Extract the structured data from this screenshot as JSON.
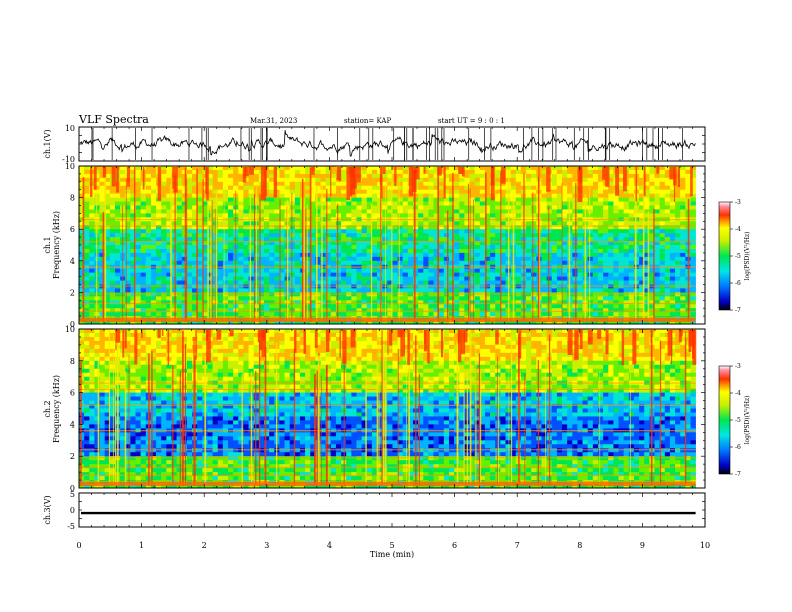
{
  "header": {
    "title": "VLF Spectra",
    "date": "Mar.31, 2023",
    "station": "station= KAP",
    "start": "start  UT =   9 : 0  : 1"
  },
  "chart_data": [
    {
      "type": "line",
      "name": "waveform-ch1",
      "ylabel": "ch.1(V)",
      "ylim": [
        -10,
        10
      ],
      "ytick_labels": [
        "10",
        "-10"
      ],
      "xlim": [
        0,
        10
      ],
      "data_end_min": 9.85,
      "color": "#000000"
    },
    {
      "type": "heatmap",
      "name": "spectrogram-ch1",
      "ylabel": "ch.1\nFrequency  (kHz)",
      "ylim": [
        0,
        10
      ],
      "ytick_labels": [
        "0",
        "2",
        "4",
        "6",
        "8",
        "10"
      ],
      "xlim": [
        0,
        10
      ],
      "data_end_min": 9.85,
      "colorbar": {
        "label": "log(PSD)(V²/Hz)",
        "range": [
          -7,
          -3
        ],
        "tick_labels": [
          "-3",
          "-4",
          "-5",
          "-6",
          "-7"
        ]
      }
    },
    {
      "type": "heatmap",
      "name": "spectrogram-ch2",
      "ylabel": "ch.2\nFrequency  (kHz)",
      "ylim": [
        0,
        10
      ],
      "ytick_labels": [
        "0",
        "2",
        "4",
        "6",
        "8",
        "10"
      ],
      "xlim": [
        0,
        10
      ],
      "data_end_min": 9.85,
      "colorbar": {
        "label": "log(PSD)(V²/Hz)",
        "range": [
          -7,
          -3
        ],
        "tick_labels": [
          "-3",
          "-4",
          "-5",
          "-6",
          "-7"
        ]
      }
    },
    {
      "type": "line",
      "name": "waveform-ch3",
      "ylabel": "ch.3(V)",
      "ylim": [
        -5,
        5
      ],
      "ytick_labels": [
        "5",
        "0",
        "-5"
      ],
      "xlim": [
        0,
        10
      ],
      "data_end_min": 9.85,
      "level": -0.9,
      "band_halfwidth": 0.35,
      "color": "#000000"
    }
  ],
  "xaxis": {
    "label": "Time  (min)",
    "range": [
      0,
      10
    ],
    "tick_labels": [
      "0",
      "1",
      "2",
      "3",
      "4",
      "5",
      "6",
      "7",
      "8",
      "9",
      "10"
    ]
  }
}
